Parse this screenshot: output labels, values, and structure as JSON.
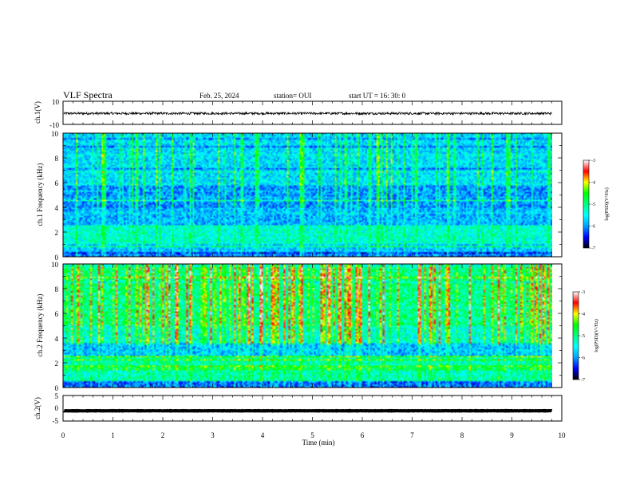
{
  "header": {
    "title": "VLF Spectra",
    "date": "Feb. 25, 2024",
    "station": "station= OUI",
    "start": "start  UT =   16: 30: 0"
  },
  "colors": {
    "trace": "#000000",
    "frame": "#000000"
  },
  "colorbar": {
    "label": "log(PSD)(V²/Hz)",
    "ticks": [
      "-3",
      "-4",
      "-5",
      "-6",
      "-7"
    ],
    "colormap": [
      "#ffffff",
      "#ff0000",
      "#ffff00",
      "#00ff00",
      "#00ffff",
      "#0000ff",
      "#000000"
    ]
  },
  "chart_data": [
    {
      "type": "line",
      "ylabel": "ch.1(V)",
      "ylim": [
        -10,
        10
      ],
      "tick_labels": [
        "10",
        "-10"
      ],
      "x_range": [
        0,
        10
      ],
      "data_end_min": 9.8,
      "baseline_v": -0.5,
      "amplitude_v": 1.0
    },
    {
      "type": "heatmap",
      "ylabel": "ch.1 Frequency (kHz)",
      "ylim": [
        0,
        10
      ],
      "y_tick_labels": [
        "10",
        "8",
        "6",
        "4",
        "2",
        "0"
      ],
      "x_range": [
        0,
        10
      ],
      "data_end_min": 9.8,
      "zlim": [
        -7,
        -3
      ]
    },
    {
      "type": "heatmap",
      "ylabel": "ch.2 Frequency (kHz)",
      "ylim": [
        0,
        10
      ],
      "y_tick_labels": [
        "10",
        "8",
        "6",
        "4",
        "2",
        "0"
      ],
      "x_range": [
        0,
        10
      ],
      "data_end_min": 9.8,
      "zlim": [
        -7,
        -3
      ]
    },
    {
      "type": "line",
      "ylabel": "ch.2(V)",
      "ylim": [
        -5,
        5
      ],
      "tick_labels": [
        "5",
        "0",
        "-5"
      ],
      "x_range": [
        0,
        10
      ],
      "data_end_min": 9.8,
      "baseline_v": -1.0,
      "amplitude_v": 0.2
    }
  ],
  "x_axis": {
    "label": "Time  (min)",
    "ticks": [
      "0",
      "1",
      "2",
      "3",
      "4",
      "5",
      "6",
      "7",
      "8",
      "9",
      "10"
    ]
  }
}
